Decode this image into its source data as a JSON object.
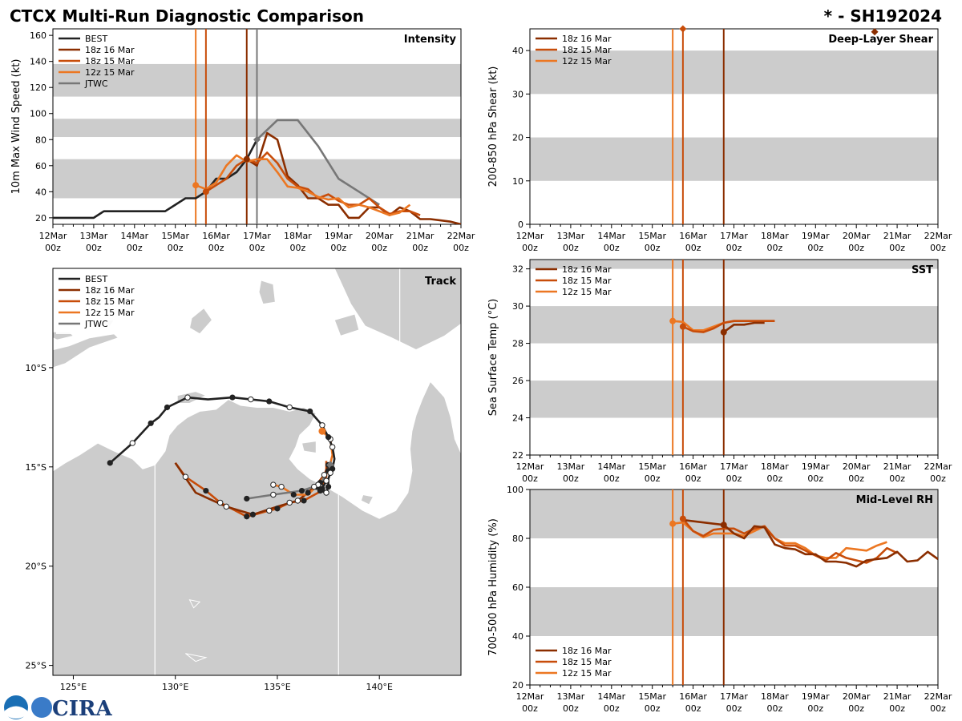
{
  "title": "CTCX Multi-Run Diagnostic Comparison",
  "storm_id": "* - SH192024",
  "logo_text": "CIRA",
  "colors": {
    "BEST": "#222222",
    "18z 16 Mar": "#8b2e00",
    "18z 15 Mar": "#c84d0a",
    "12z 15 Mar": "#ec7722",
    "JTWC": "#777777",
    "band": "#cccccc",
    "land": "#cccccc"
  },
  "time_ticks": [
    "12Mar\n00z",
    "13Mar\n00z",
    "14Mar\n00z",
    "15Mar\n00z",
    "16Mar\n00z",
    "17Mar\n00z",
    "18Mar\n00z",
    "19Mar\n00z",
    "20Mar\n00z",
    "21Mar\n00z",
    "22Mar\n00z"
  ],
  "track_labels": {
    "x_ticks": [
      "125°E",
      "130°E",
      "135°E",
      "140°E"
    ],
    "y_ticks": [
      "10°S",
      "15°S",
      "20°S",
      "25°S"
    ]
  },
  "chart_data": [
    {
      "id": "intensity",
      "type": "line",
      "title": "Intensity",
      "ylabel": "10m Max Wind Speed (kt)",
      "xlim": [
        0,
        10
      ],
      "ylim": [
        15,
        165
      ],
      "yticks": [
        20,
        40,
        60,
        80,
        100,
        120,
        140,
        160
      ],
      "bands": [
        [
          35,
          65
        ],
        [
          82,
          96
        ],
        [
          113,
          138
        ]
      ],
      "legend": [
        "BEST",
        "18z 16 Mar",
        "18z 15 Mar",
        "12z 15 Mar",
        "JTWC"
      ],
      "vlines": [
        {
          "x": 3.5,
          "series": "12z 15 Mar"
        },
        {
          "x": 3.75,
          "series": "18z 15 Mar"
        },
        {
          "x": 4.75,
          "series": "18z 16 Mar"
        },
        {
          "x": 5.0,
          "series": "JTWC"
        }
      ],
      "series": [
        {
          "name": "BEST",
          "x": [
            0,
            1,
            1.25,
            1.5,
            2,
            2.5,
            2.75,
            3,
            3.25,
            3.5,
            3.75,
            4,
            4.25,
            4.5,
            4.75,
            5
          ],
          "y": [
            20,
            20,
            25,
            25,
            25,
            25,
            25,
            30,
            35,
            35,
            40,
            50,
            50,
            55,
            65,
            80
          ]
        },
        {
          "name": "JTWC",
          "x": [
            5,
            5.5,
            6,
            6.5,
            7,
            7.5,
            8
          ],
          "y": [
            80,
            95,
            95,
            75,
            50,
            40,
            30
          ],
          "marker": {
            "x": 5,
            "y": 80
          }
        },
        {
          "name": "18z 16 Mar",
          "x": [
            4.75,
            5,
            5.25,
            5.5,
            5.75,
            6,
            6.25,
            6.5,
            6.75,
            7,
            7.25,
            7.5,
            7.75,
            8,
            8.25,
            8.5,
            8.75,
            9,
            9.25,
            9.5,
            9.75,
            10
          ],
          "y": [
            65,
            60,
            85,
            80,
            52,
            45,
            35,
            35,
            30,
            30,
            20,
            20,
            28,
            28,
            22,
            28,
            25,
            19,
            19,
            18,
            17,
            15
          ],
          "marker": {
            "x": 4.75,
            "y": 65
          }
        },
        {
          "name": "18z 15 Mar",
          "x": [
            3.75,
            4,
            4.25,
            4.5,
            4.75,
            5,
            5.25,
            5.5,
            5.75,
            6,
            6.25,
            6.5,
            6.75,
            7,
            7.25,
            7.5,
            7.75,
            8,
            8.25,
            8.5,
            8.75,
            9
          ],
          "y": [
            40,
            45,
            50,
            60,
            65,
            62,
            70,
            62,
            50,
            44,
            42,
            35,
            38,
            33,
            30,
            30,
            35,
            28,
            23,
            25,
            25,
            22
          ],
          "marker": {
            "x": 3.75,
            "y": 40
          }
        },
        {
          "name": "12z 15 Mar",
          "x": [
            3.5,
            3.75,
            4,
            4.25,
            4.5,
            4.75,
            5,
            5.25,
            5.5,
            5.75,
            6,
            6.25,
            6.5,
            6.75,
            7,
            7.25,
            7.5,
            7.75,
            8,
            8.25,
            8.5,
            8.75
          ],
          "y": [
            45,
            42,
            47,
            60,
            68,
            63,
            65,
            65,
            55,
            44,
            43,
            40,
            36,
            34,
            35,
            28,
            30,
            28,
            25,
            22,
            24,
            30
          ],
          "marker": {
            "x": 3.5,
            "y": 45
          }
        }
      ]
    },
    {
      "id": "shear",
      "type": "line",
      "title": "Deep-Layer Shear",
      "ylabel": "200-850 hPa Shear (kt)",
      "xlim": [
        0,
        10
      ],
      "ylim": [
        0,
        45
      ],
      "yticks": [
        0,
        10,
        20,
        30,
        40
      ],
      "bands": [
        [
          10,
          20
        ],
        [
          30,
          40
        ]
      ],
      "legend": [
        "18z 16 Mar",
        "18z 15 Mar",
        "12z 15 Mar"
      ],
      "vlines": [
        {
          "x": 3.5,
          "series": "12z 15 Mar"
        },
        {
          "x": 3.75,
          "series": "18z 15 Mar"
        },
        {
          "x": 4.75,
          "series": "18z 16 Mar"
        }
      ],
      "series": [
        {
          "name": "18z 15 Mar",
          "x": [
            3.75
          ],
          "y": [
            45
          ],
          "marker": {
            "x": 3.75,
            "y": 45
          }
        },
        {
          "name": "18z 16 Mar",
          "x": [
            8.45
          ],
          "y": [
            44.3
          ],
          "marker": {
            "x": 8.45,
            "y": 44.3
          }
        }
      ]
    },
    {
      "id": "sst",
      "type": "line",
      "title": "SST",
      "ylabel": "Sea Surface Temp (°C)",
      "xlim": [
        0,
        10
      ],
      "ylim": [
        22,
        32.5
      ],
      "yticks": [
        22,
        24,
        26,
        28,
        30,
        32
      ],
      "bands": [
        [
          24,
          26
        ],
        [
          28,
          30
        ],
        [
          32,
          32.5
        ]
      ],
      "legend": [
        "18z 16 Mar",
        "18z 15 Mar",
        "12z 15 Mar"
      ],
      "vlines": [
        {
          "x": 3.5,
          "series": "12z 15 Mar"
        },
        {
          "x": 3.75,
          "series": "18z 15 Mar"
        },
        {
          "x": 4.75,
          "series": "18z 16 Mar"
        }
      ],
      "series": [
        {
          "name": "12z 15 Mar",
          "x": [
            3.5,
            3.75,
            4,
            4.25,
            4.5,
            4.75,
            5,
            5.25,
            5.5,
            5.75,
            6
          ],
          "y": [
            29.2,
            29.15,
            28.7,
            28.7,
            28.9,
            29.1,
            29.2,
            29.2,
            29.2,
            29.2,
            29.2
          ],
          "marker": {
            "x": 3.5,
            "y": 29.2
          }
        },
        {
          "name": "18z 15 Mar",
          "x": [
            3.75,
            4,
            4.25,
            4.5,
            4.75,
            5,
            5.25,
            5.5,
            5.75,
            6
          ],
          "y": [
            28.9,
            28.65,
            28.6,
            28.8,
            29.1,
            29.2,
            29.2,
            29.2,
            29.2,
            29.2
          ],
          "marker": {
            "x": 3.75,
            "y": 28.9
          }
        },
        {
          "name": "18z 16 Mar",
          "x": [
            4.75,
            5,
            5.25,
            5.5,
            5.75
          ],
          "y": [
            28.6,
            29.0,
            29.0,
            29.1,
            29.1
          ],
          "marker": {
            "x": 4.75,
            "y": 28.6
          }
        }
      ]
    },
    {
      "id": "rh",
      "type": "line",
      "title": "Mid-Level RH",
      "ylabel": "700-500 hPa Humidity (%)",
      "xlim": [
        0,
        10
      ],
      "ylim": [
        20,
        100
      ],
      "yticks": [
        20,
        40,
        60,
        80,
        100
      ],
      "bands": [
        [
          40,
          60
        ],
        [
          80,
          100
        ]
      ],
      "legend": [
        "18z 16 Mar",
        "18z 15 Mar",
        "12z 15 Mar"
      ],
      "vlines": [
        {
          "x": 3.5,
          "series": "12z 15 Mar"
        },
        {
          "x": 3.75,
          "series": "18z 15 Mar"
        },
        {
          "x": 4.75,
          "series": "18z 16 Mar"
        }
      ],
      "series": [
        {
          "name": "12z 15 Mar",
          "x": [
            3.5,
            3.75,
            4,
            4.25,
            4.5,
            4.75,
            5,
            5.25,
            5.5,
            5.75,
            6,
            6.25,
            6.5,
            6.75,
            7,
            7.25,
            7.5,
            7.75,
            8,
            8.25,
            8.5,
            8.75
          ],
          "y": [
            86,
            86.5,
            83,
            80.5,
            82,
            82,
            82,
            81,
            83,
            85,
            80,
            78,
            78,
            76,
            73,
            72,
            72,
            76,
            75.5,
            75,
            77,
            78.5
          ],
          "marker": {
            "x": 3.5,
            "y": 86
          }
        },
        {
          "name": "18z 15 Mar",
          "x": [
            3.75,
            4,
            4.25,
            4.5,
            4.75,
            5,
            5.25,
            5.5,
            5.75,
            6,
            6.25,
            6.5,
            6.75,
            7,
            7.25,
            7.5,
            7.75,
            8,
            8.25,
            8.5,
            8.75,
            9
          ],
          "y": [
            88,
            83,
            81,
            83.5,
            84,
            84,
            82,
            84,
            85,
            80,
            77,
            77,
            75,
            73,
            71,
            74,
            72,
            71,
            70,
            72,
            76,
            74
          ],
          "marker": {
            "x": 3.75,
            "y": 88
          }
        },
        {
          "name": "18z 16 Mar",
          "x": [
            3.75,
            4.75,
            5,
            5.25,
            5.5,
            5.75,
            6,
            6.25,
            6.5,
            6.75,
            7,
            7.25,
            7.5,
            7.75,
            8,
            8.25,
            8.5,
            8.75,
            9,
            9.25,
            9.5,
            9.75,
            10
          ],
          "y": [
            87.5,
            85.5,
            82,
            80,
            85,
            84.5,
            77.5,
            76,
            75.5,
            73.5,
            73.5,
            70.5,
            70.5,
            70,
            68.5,
            71,
            71.5,
            72,
            74.5,
            70.5,
            71,
            74.5,
            71.5
          ],
          "marker": {
            "x": 4.75,
            "y": 85.5
          }
        }
      ]
    },
    {
      "id": "track",
      "type": "line",
      "title": "Track",
      "xlim": [
        124,
        144
      ],
      "ylim": [
        -25.5,
        -5
      ],
      "xticks": [
        125,
        130,
        135,
        140
      ],
      "yticks": [
        -10,
        -15,
        -20,
        -25
      ],
      "legend": [
        "BEST",
        "18z 16 Mar",
        "18z 15 Mar",
        "12z 15 Mar",
        "JTWC"
      ],
      "series": [
        {
          "name": "BEST",
          "lon": [
            126.8,
            127.9,
            128.8,
            129.2,
            129.6,
            130.6,
            131.6,
            132.8,
            133.7,
            134.6,
            135.6,
            136.6,
            137.2,
            137.5,
            137.7,
            137.8,
            137.7,
            137.6,
            137.5,
            137.5,
            137.4,
            137.1,
            137.0,
            136.9,
            137.2,
            137.4,
            137.1,
            136.8
          ],
          "lat": [
            -14.8,
            -13.8,
            -12.8,
            -12.5,
            -12.0,
            -11.5,
            -11.6,
            -11.5,
            -11.6,
            -11.7,
            -12.0,
            -12.2,
            -12.9,
            -13.5,
            -14.0,
            -14.6,
            -15.1,
            -15.3,
            -15.6,
            -16.0,
            -16.3,
            -16.2,
            -15.9,
            -16.1,
            -16.1,
            -15.7,
            -15.8,
            -16.0
          ],
          "filled": [
            0,
            2,
            4,
            7,
            9,
            11,
            13,
            16,
            19,
            21,
            24,
            26
          ],
          "open": [
            1,
            5,
            8,
            10,
            12,
            14,
            17,
            20,
            22,
            25,
            27
          ]
        },
        {
          "name": "18z 16 Mar",
          "lon": [
            137.5,
            137.3,
            137.0,
            136.5,
            136.0,
            135.0,
            133.8,
            132.5,
            131.0,
            130.0
          ],
          "lat": [
            -14.9,
            -15.4,
            -15.8,
            -16.3,
            -16.7,
            -17.0,
            -17.4,
            -17.0,
            -16.3,
            -14.8
          ],
          "filled": [
            0,
            3,
            6
          ],
          "open": [
            1,
            4,
            7
          ]
        },
        {
          "name": "18z 15 Mar",
          "lon": [
            137.4,
            137.4,
            137.0,
            136.3,
            135.6,
            135.0,
            134.6,
            133.9,
            133.5,
            132.2,
            131.5,
            130.5,
            130.0
          ],
          "lat": [
            -14.7,
            -15.5,
            -16.3,
            -16.7,
            -16.8,
            -17.1,
            -17.2,
            -17.4,
            -17.5,
            -16.8,
            -16.2,
            -15.5,
            -14.8
          ],
          "filled": [
            3,
            5,
            8,
            10
          ],
          "open": [
            4,
            6,
            9,
            11
          ]
        },
        {
          "name": "12z 15 Mar",
          "lon": [
            137.2,
            137.6,
            137.7,
            137.5,
            137.0,
            136.5,
            135.8,
            135.2,
            134.8
          ],
          "lat": [
            -13.2,
            -13.6,
            -14.4,
            -15.2,
            -15.9,
            -16.4,
            -16.4,
            -16.0,
            -15.9
          ],
          "filled": [
            0,
            3,
            6
          ],
          "open": [
            1,
            4,
            7,
            8
          ]
        },
        {
          "name": "JTWC",
          "lon": [
            133.5,
            134.8,
            136.2,
            137.1,
            137.6
          ],
          "lat": [
            -16.6,
            -16.4,
            -16.2,
            -15.9,
            -14.9
          ],
          "filled": [
            0,
            2
          ],
          "open": [
            1,
            3
          ],
          "marker": {
            "lon": 137.6,
            "lat": -14.9
          }
        }
      ]
    }
  ]
}
